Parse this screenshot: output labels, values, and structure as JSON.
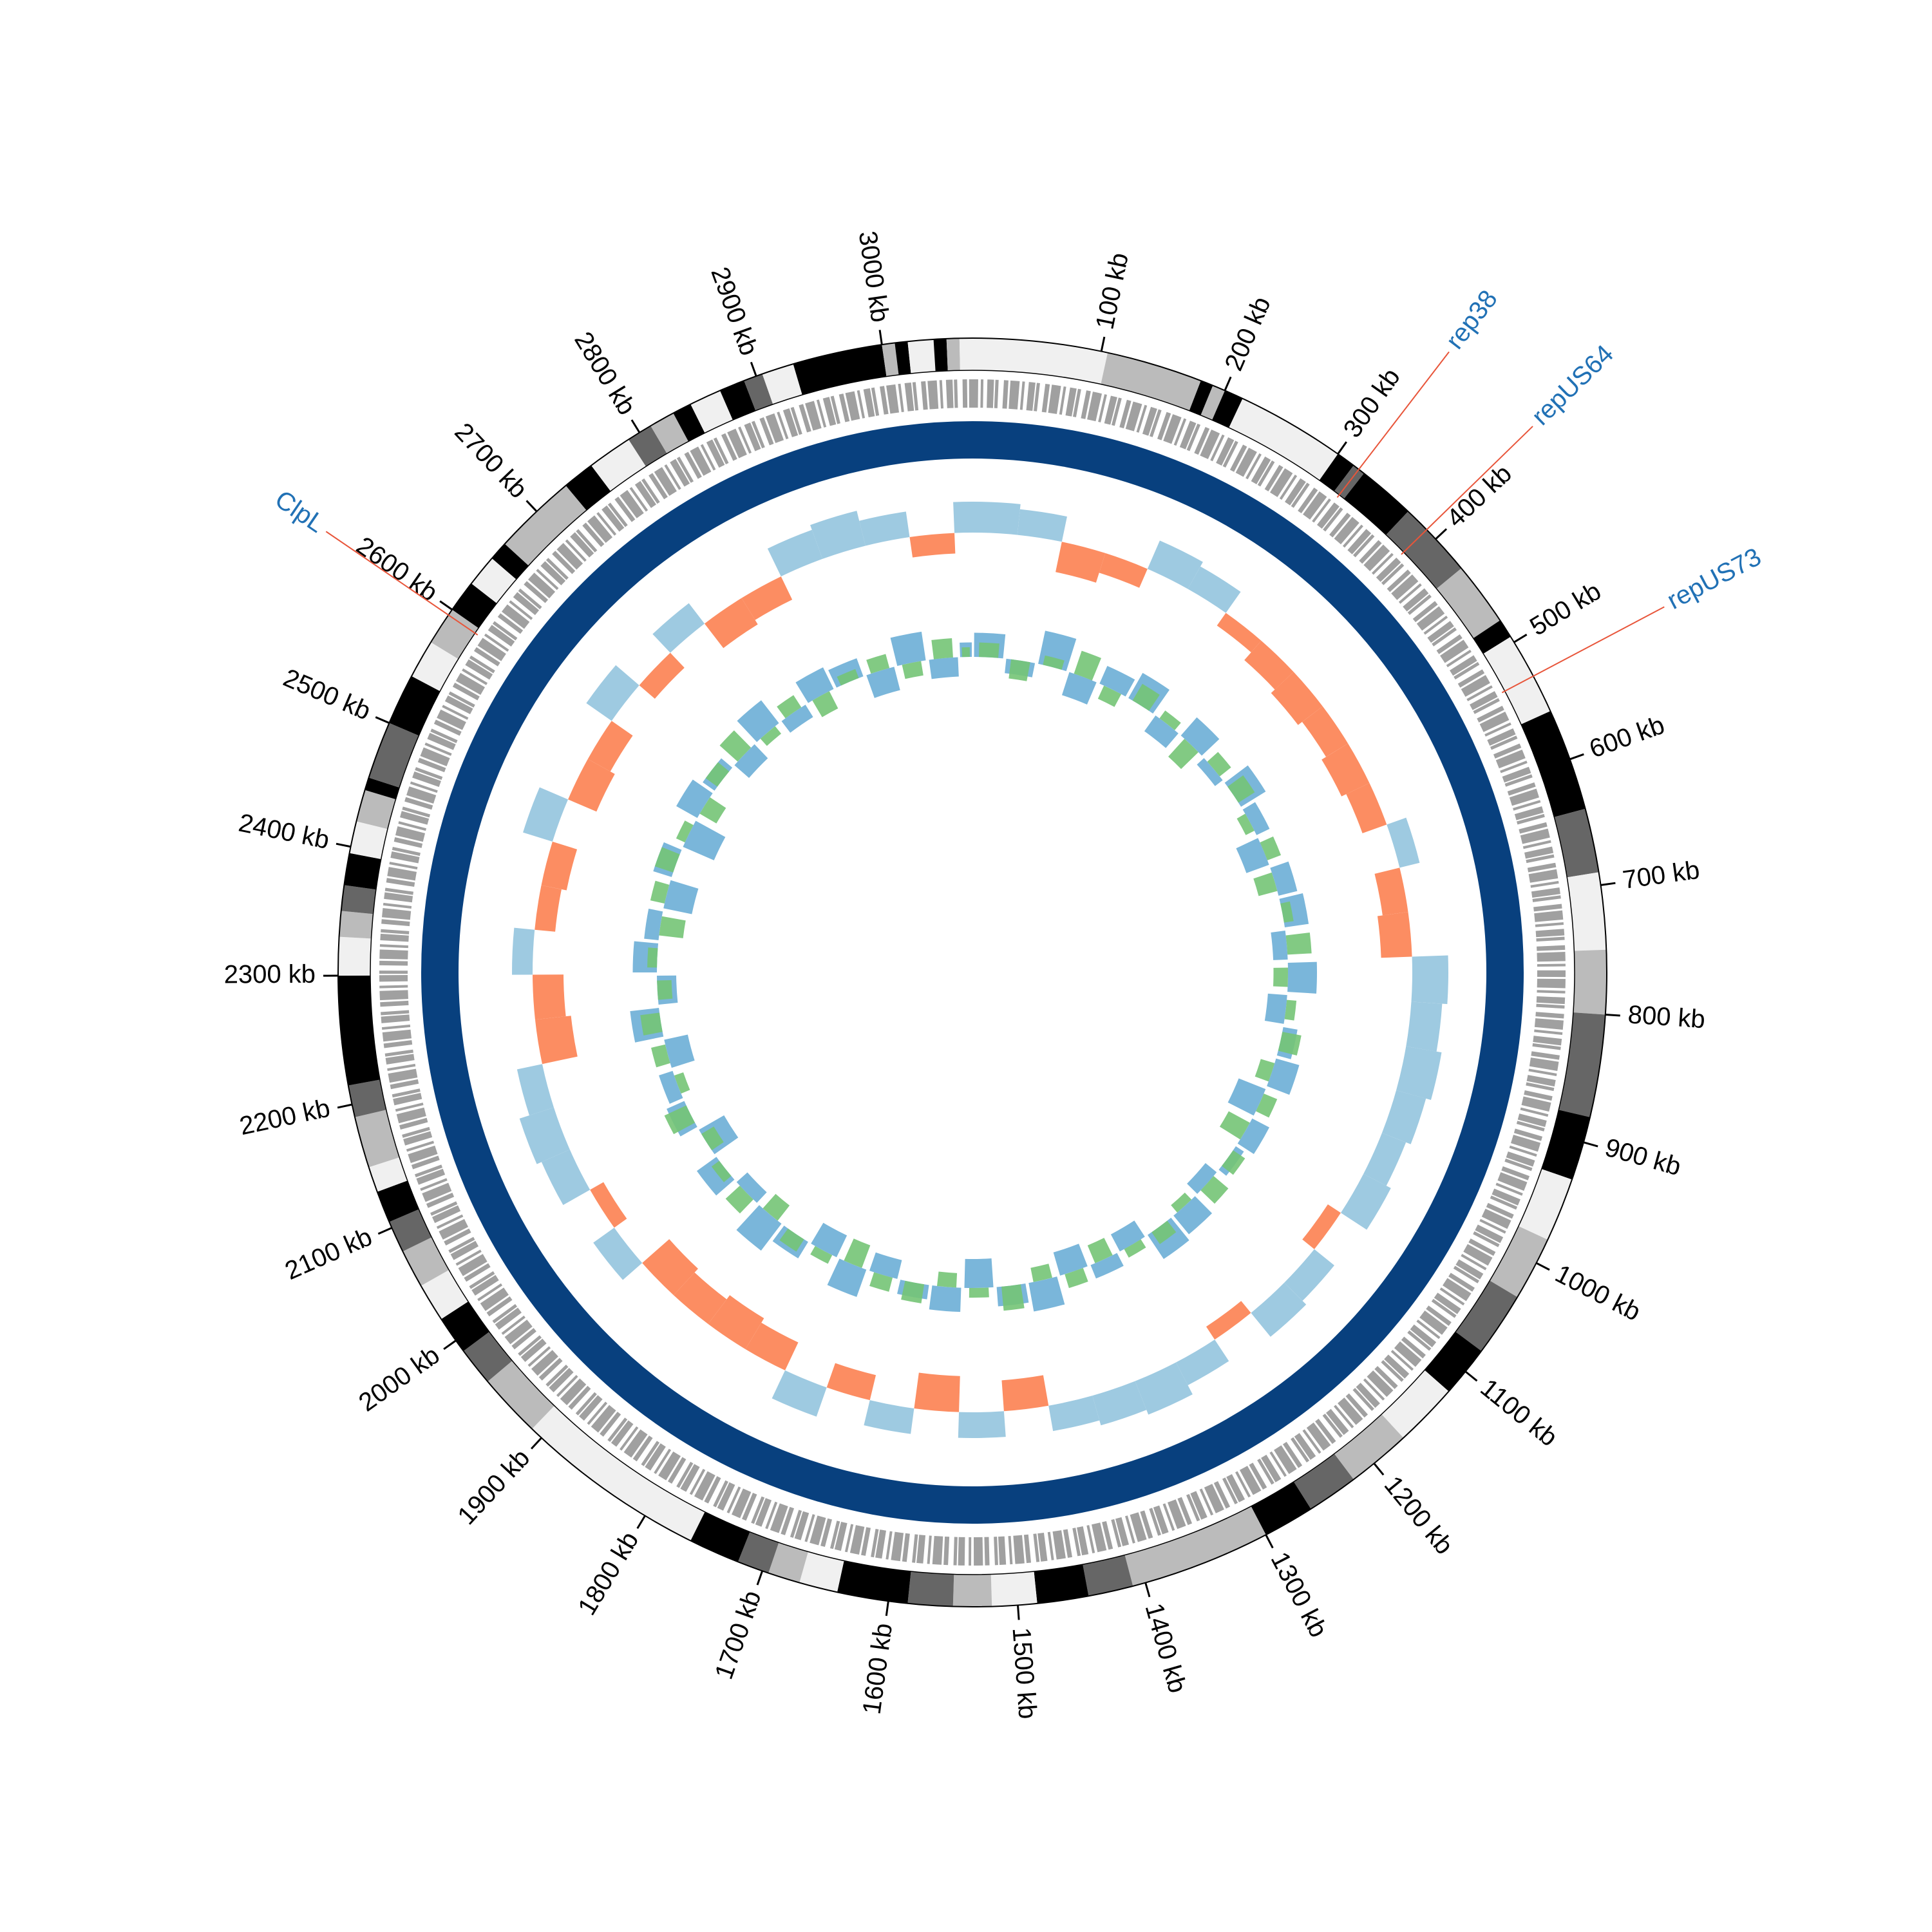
{
  "chart_data": {
    "type": "circos",
    "xlim": [
      0,
      3070
    ],
    "xticks": [
      {
        "value": 100,
        "label": "100 kb"
      },
      {
        "value": 200,
        "label": "200 kb"
      },
      {
        "value": 300,
        "label": "300 kb"
      },
      {
        "value": 400,
        "label": "400 kb"
      },
      {
        "value": 500,
        "label": "500 kb"
      },
      {
        "value": 600,
        "label": "600 kb"
      },
      {
        "value": 700,
        "label": "700 kb"
      },
      {
        "value": 800,
        "label": "800 kb"
      },
      {
        "value": 900,
        "label": "900 kb"
      },
      {
        "value": 1000,
        "label": "1000 kb"
      },
      {
        "value": 1100,
        "label": "1100 kb"
      },
      {
        "value": 1200,
        "label": "1200 kb"
      },
      {
        "value": 1300,
        "label": "1300 kb"
      },
      {
        "value": 1400,
        "label": "1400 kb"
      },
      {
        "value": 1500,
        "label": "1500 kb"
      },
      {
        "value": 1600,
        "label": "1600 kb"
      },
      {
        "value": 1700,
        "label": "1700 kb"
      },
      {
        "value": 1800,
        "label": "1800 kb"
      },
      {
        "value": 1900,
        "label": "1900 kb"
      },
      {
        "value": 2000,
        "label": "2000 kb"
      },
      {
        "value": 2100,
        "label": "2100 kb"
      },
      {
        "value": 2200,
        "label": "2200 kb"
      },
      {
        "value": 2300,
        "label": "2300 kb"
      },
      {
        "value": 2400,
        "label": "2400 kb"
      },
      {
        "value": 2500,
        "label": "2500 kb"
      },
      {
        "value": 2600,
        "label": "2600 kb"
      },
      {
        "value": 2700,
        "label": "2700 kb"
      },
      {
        "value": 2800,
        "label": "2800 kb"
      },
      {
        "value": 2900,
        "label": "2900 kb"
      },
      {
        "value": 3000,
        "label": "3000 kb"
      }
    ],
    "annotations": [
      {
        "label": "rep38",
        "position": 320
      },
      {
        "label": "repUS64",
        "position": 390
      },
      {
        "label": "repUS73",
        "position": 530
      },
      {
        "label": "ClpL",
        "position": 2595
      }
    ],
    "annotation_color": "#2171b5",
    "annotation_line_color": "#e8553a",
    "bands": [
      {
        "start": 0,
        "color": "#f0f0f0"
      },
      {
        "start": 105,
        "color": "#bbbbbb"
      },
      {
        "start": 180,
        "color": "#000000"
      },
      {
        "start": 190,
        "color": "#bbbbbb"
      },
      {
        "start": 200,
        "color": "#000000"
      },
      {
        "start": 215,
        "color": "#f0f0f0"
      },
      {
        "start": 300,
        "color": "#000000"
      },
      {
        "start": 315,
        "color": "#666666"
      },
      {
        "start": 325,
        "color": "#000000"
      },
      {
        "start": 370,
        "color": "#666666"
      },
      {
        "start": 430,
        "color": "#bbbbbb"
      },
      {
        "start": 480,
        "color": "#000000"
      },
      {
        "start": 495,
        "color": "#f0f0f0"
      },
      {
        "start": 560,
        "color": "#000000"
      },
      {
        "start": 640,
        "color": "#666666"
      },
      {
        "start": 690,
        "color": "#f0f0f0"
      },
      {
        "start": 750,
        "color": "#bbbbbb"
      },
      {
        "start": 800,
        "color": "#666666"
      },
      {
        "start": 880,
        "color": "#000000"
      },
      {
        "start": 930,
        "color": "#f0f0f0"
      },
      {
        "start": 980,
        "color": "#bbbbbb"
      },
      {
        "start": 1030,
        "color": "#666666"
      },
      {
        "start": 1080,
        "color": "#000000"
      },
      {
        "start": 1120,
        "color": "#f0f0f0"
      },
      {
        "start": 1170,
        "color": "#bbbbbb"
      },
      {
        "start": 1220,
        "color": "#666666"
      },
      {
        "start": 1260,
        "color": "#000000"
      },
      {
        "start": 1300,
        "color": "#bbbbbb"
      },
      {
        "start": 1410,
        "color": "#666666"
      },
      {
        "start": 1445,
        "color": "#000000"
      },
      {
        "start": 1485,
        "color": "#f0f0f0"
      },
      {
        "start": 1520,
        "color": "#bbbbbb"
      },
      {
        "start": 1550,
        "color": "#666666"
      },
      {
        "start": 1585,
        "color": "#000000"
      },
      {
        "start": 1640,
        "color": "#f0f0f0"
      },
      {
        "start": 1670,
        "color": "#bbbbbb"
      },
      {
        "start": 1695,
        "color": "#666666"
      },
      {
        "start": 1720,
        "color": "#000000"
      },
      {
        "start": 1760,
        "color": "#f0f0f0"
      },
      {
        "start": 1910,
        "color": "#bbbbbb"
      },
      {
        "start": 1960,
        "color": "#666666"
      },
      {
        "start": 1990,
        "color": "#000000"
      },
      {
        "start": 2020,
        "color": "#f0f0f0"
      },
      {
        "start": 2050,
        "color": "#bbbbbb"
      },
      {
        "start": 2080,
        "color": "#666666"
      },
      {
        "start": 2105,
        "color": "#000000"
      },
      {
        "start": 2130,
        "color": "#f0f0f0"
      },
      {
        "start": 2150,
        "color": "#bbbbbb"
      },
      {
        "start": 2190,
        "color": "#666666"
      },
      {
        "start": 2215,
        "color": "#000000"
      },
      {
        "start": 2300,
        "color": "#f0f0f0"
      },
      {
        "start": 2330,
        "color": "#bbbbbb"
      },
      {
        "start": 2350,
        "color": "#666666"
      },
      {
        "start": 2370,
        "color": "#000000"
      },
      {
        "start": 2395,
        "color": "#f0f0f0"
      },
      {
        "start": 2420,
        "color": "#bbbbbb"
      },
      {
        "start": 2445,
        "color": "#000000"
      },
      {
        "start": 2455,
        "color": "#666666"
      },
      {
        "start": 2500,
        "color": "#000000"
      },
      {
        "start": 2540,
        "color": "#f0f0f0"
      },
      {
        "start": 2570,
        "color": "#bbbbbb"
      },
      {
        "start": 2600,
        "color": "#000000"
      },
      {
        "start": 2625,
        "color": "#f0f0f0"
      },
      {
        "start": 2650,
        "color": "#000000"
      },
      {
        "start": 2665,
        "color": "#bbbbbb"
      },
      {
        "start": 2730,
        "color": "#000000"
      },
      {
        "start": 2755,
        "color": "#f0f0f0"
      },
      {
        "start": 2790,
        "color": "#666666"
      },
      {
        "start": 2810,
        "color": "#bbbbbb"
      },
      {
        "start": 2830,
        "color": "#000000"
      },
      {
        "start": 2845,
        "color": "#f0f0f0"
      },
      {
        "start": 2870,
        "color": "#000000"
      },
      {
        "start": 2890,
        "color": "#666666"
      },
      {
        "start": 2905,
        "color": "#f0f0f0"
      },
      {
        "start": 2930,
        "color": "#000000"
      },
      {
        "start": 3000,
        "color": "#bbbbbb"
      },
      {
        "start": 3010,
        "color": "#000000"
      },
      {
        "start": 3020,
        "color": "#f0f0f0"
      },
      {
        "start": 3040,
        "color": "#000000"
      },
      {
        "start": 3050,
        "color": "#bbbbbb"
      },
      {
        "start": 3060,
        "color": "#f0f0f0"
      }
    ],
    "x": [
      0,
      50,
      100,
      150,
      200,
      250,
      300,
      350,
      400,
      450,
      500,
      550,
      600,
      650,
      700,
      750,
      800,
      850,
      900,
      950,
      1000,
      1050,
      1100,
      1150,
      1200,
      1250,
      1300,
      1350,
      1400,
      1450,
      1500,
      1550,
      1600,
      1650,
      1700,
      1750,
      1800,
      1850,
      1900,
      1950,
      2000,
      2050,
      2100,
      2150,
      2200,
      2250,
      2300,
      2350,
      2400,
      2450,
      2500,
      2550,
      2600,
      2650,
      2700,
      2750,
      2800,
      2850,
      2900,
      2950,
      3000,
      3050
    ],
    "series": [
      {
        "track": "skew",
        "ylim": [
          -1,
          1
        ],
        "color": "#9ecae1",
        "negative_color": "#fc8d62",
        "values": [
          0.6,
          0.5,
          -0.6,
          -0.4,
          0.6,
          0.5,
          -0.3,
          -0.5,
          -0.6,
          -0.5,
          -0.6,
          -0.5,
          0.4,
          -0.5,
          -0.6,
          0.7,
          0.6,
          0.7,
          0.6,
          0.5,
          0.6,
          -0.3,
          0.5,
          0.6,
          -0.3,
          0.5,
          0.7,
          0.6,
          0.5,
          -0.6,
          0.5,
          -0.7,
          0.5,
          -0.5,
          0.6,
          -0.6,
          -0.7,
          -0.6,
          -0.7,
          0.5,
          -0.3,
          0.6,
          0.7,
          0.5,
          -0.7,
          -0.6,
          0.4,
          -0.4,
          -0.5,
          0.6,
          -0.6,
          -0.5,
          0.6,
          -0.4,
          0.5,
          -0.6,
          -0.5,
          0.6,
          0.7,
          0.5,
          -0.4,
          0.6
        ]
      },
      {
        "track": "wave",
        "ylim": [
          -1,
          1
        ],
        "color": "#6baed6",
        "values": [
          0.5,
          -0.3,
          0.7,
          -0.5,
          0.4,
          0.6,
          -0.4,
          0.5,
          -0.2,
          0.6,
          0.3,
          -0.5,
          0.4,
          0.5,
          -0.3,
          0.6,
          -0.4,
          0.3,
          0.5,
          -0.6,
          0.4,
          0.2,
          -0.3,
          0.5,
          0.6,
          -0.4,
          0.3,
          -0.5,
          0.6,
          0.4,
          -0.6,
          0.5,
          0.3,
          -0.4,
          0.6,
          -0.5,
          0.4,
          0.7,
          -0.3,
          0.5,
          -0.6,
          0.4,
          0.3,
          -0.5,
          0.6,
          -0.4,
          0.5,
          0.3,
          -0.6,
          0.4,
          -0.7,
          0.5,
          0.3,
          -0.4,
          0.6,
          -0.3,
          0.5,
          0.4,
          -0.5,
          0.6,
          -0.4,
          0.3
        ]
      },
      {
        "track": "wave",
        "ylim": [
          -1,
          1
        ],
        "color": "#74c476",
        "values": [
          0.3,
          -0.4,
          0.2,
          0.5,
          -0.3,
          0.4,
          0.2,
          -0.5,
          0.3,
          0.4,
          -0.2,
          0.3,
          -0.4,
          0.2,
          0.5,
          -0.3,
          0.2,
          0.4,
          -0.3,
          0.3,
          -0.5,
          0.3,
          0.4,
          -0.2,
          0.3,
          0.2,
          -0.4,
          0.3,
          -0.3,
          0.5,
          0.2,
          -0.3,
          0.4,
          0.3,
          -0.5,
          0.2,
          0.3,
          -0.4,
          0.4,
          0.2,
          -0.3,
          0.5,
          -0.2,
          0.3,
          0.4,
          -0.3,
          0.2,
          -0.5,
          0.3,
          0.4,
          0.2,
          -0.4,
          0.3,
          0.5,
          -0.2,
          0.3,
          -0.4,
          0.2,
          0.3,
          -0.3,
          0.4,
          0.2
        ]
      }
    ]
  }
}
